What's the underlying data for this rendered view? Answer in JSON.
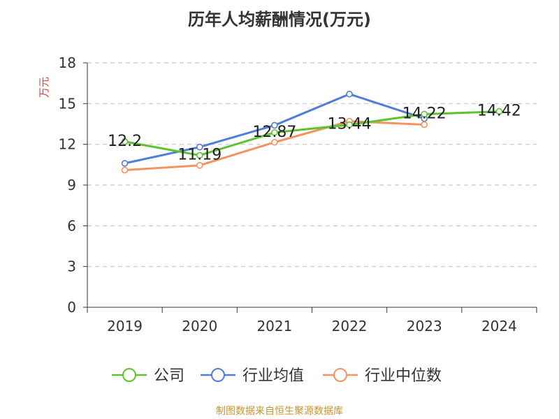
{
  "title": "历年人均薪酬情况(万元)",
  "source": "制图数据来自恒生聚源数据库",
  "chart_data": {
    "type": "line",
    "title": "历年人均薪酬情况(万元)",
    "ylabel": "万元",
    "xlabel": "",
    "categories": [
      "2019",
      "2020",
      "2021",
      "2022",
      "2023",
      "2024"
    ],
    "ylim": [
      0,
      18
    ],
    "yticks": [
      0,
      3,
      6,
      9,
      12,
      15,
      18
    ],
    "grid": true,
    "legend_position": "bottom",
    "series": [
      {
        "name": "公司",
        "color": "#5cc32f",
        "values": [
          12.2,
          11.19,
          12.87,
          13.44,
          14.22,
          14.42
        ],
        "labels": [
          "12.2",
          "11.19",
          "12.87",
          "13.44",
          "14.22",
          "14.42"
        ]
      },
      {
        "name": "行业均值",
        "color": "#4d7fd6",
        "values": [
          10.6,
          11.8,
          13.4,
          15.7,
          13.9,
          null
        ]
      },
      {
        "name": "行业中位数",
        "color": "#f59262",
        "values": [
          10.1,
          10.45,
          12.15,
          13.7,
          13.45,
          null
        ]
      }
    ]
  }
}
